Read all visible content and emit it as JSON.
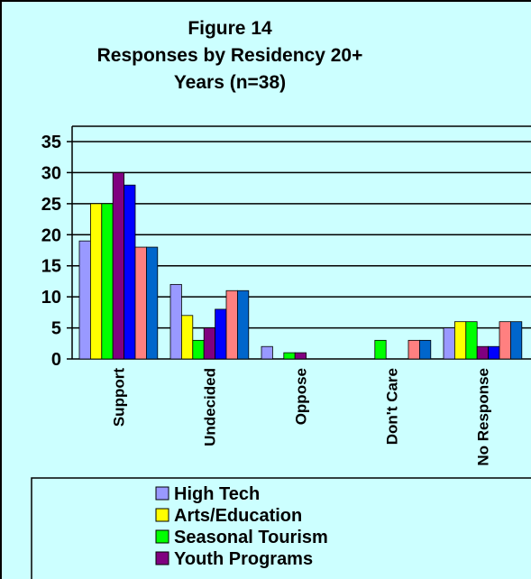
{
  "chart_data": {
    "type": "bar",
    "title": [
      "Figure 14",
      "Responses by Residency 20+",
      "Years (n=38)"
    ],
    "categories": [
      "Support",
      "Undecided",
      "Oppose",
      "Don't Care",
      "No Response"
    ],
    "series": [
      {
        "name": "High Tech",
        "color": "#9999ff",
        "values": [
          19,
          12,
          2,
          0,
          5
        ]
      },
      {
        "name": "Arts/Education",
        "color": "#ffff00",
        "values": [
          25,
          7,
          0,
          0,
          6
        ]
      },
      {
        "name": "Seasonal Tourism",
        "color": "#00ff00",
        "values": [
          25,
          3,
          1,
          3,
          6
        ]
      },
      {
        "name": "Youth Programs",
        "color": "#800080",
        "values": [
          30,
          5,
          1,
          0,
          2
        ]
      },
      {
        "name": null,
        "color": "#0000ff",
        "values": [
          28,
          8,
          0,
          0,
          2
        ]
      },
      {
        "name": null,
        "color": "#ff8080",
        "values": [
          18,
          11,
          0,
          3,
          6
        ]
      },
      {
        "name": null,
        "color": "#0066cc",
        "values": [
          18,
          11,
          0,
          3,
          6
        ]
      }
    ],
    "ylim": [
      0,
      35
    ],
    "yticks": [
      0,
      5,
      10,
      15,
      20,
      25,
      30,
      35
    ],
    "grid": true
  }
}
